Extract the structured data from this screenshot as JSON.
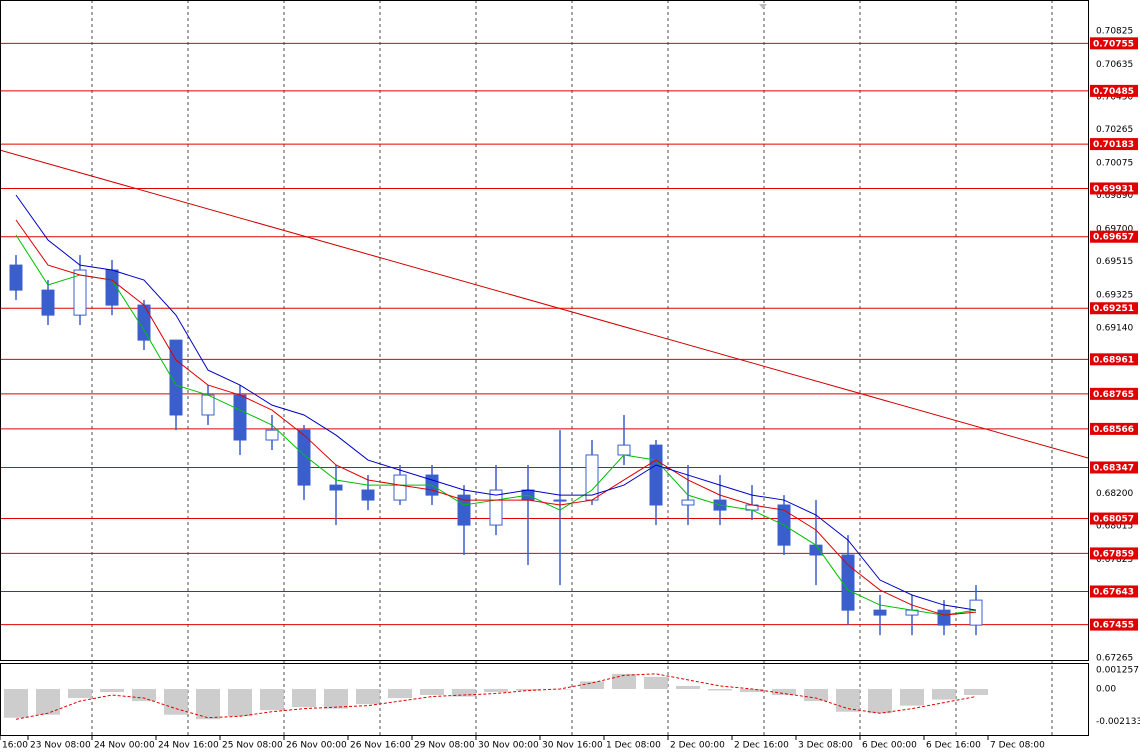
{
  "chart_data": [
    {
      "type": "candlestick",
      "candle_color": "#3a5fcd",
      "open": [
        0.69496,
        0.69354,
        0.69212,
        0.69468,
        0.69269,
        0.6907,
        0.68645,
        0.68758,
        0.68503,
        0.68559,
        0.68247,
        0.68219,
        0.68162,
        0.68304,
        0.6819,
        0.6802,
        0.68219,
        0.68162,
        0.68162,
        0.68418,
        0.68474,
        0.68134,
        0.68162,
        0.68105,
        0.68134,
        0.67906,
        0.6785,
        0.67537,
        0.67509,
        0.67537,
        0.67452
      ],
      "high": [
        0.69553,
        0.69411,
        0.69553,
        0.69525,
        0.69298,
        0.6907,
        0.68815,
        0.68815,
        0.68645,
        0.68588,
        0.68361,
        0.68304,
        0.68361,
        0.68361,
        0.68247,
        0.68361,
        0.68361,
        0.68559,
        0.68503,
        0.68645,
        0.68503,
        0.68361,
        0.68304,
        0.68247,
        0.6819,
        0.68162,
        0.67963,
        0.67623,
        0.67623,
        0.67594,
        0.67679
      ],
      "low": [
        0.69298,
        0.69156,
        0.69156,
        0.69212,
        0.69014,
        0.68559,
        0.68588,
        0.68418,
        0.68446,
        0.68162,
        0.6802,
        0.68105,
        0.68134,
        0.68134,
        0.6785,
        0.67963,
        0.67793,
        0.67679,
        0.68134,
        0.68361,
        0.6802,
        0.6802,
        0.6802,
        0.68048,
        0.6785,
        0.67679,
        0.67452,
        0.67395,
        0.67395,
        0.67395,
        0.67395
      ],
      "close": [
        0.69354,
        0.69212,
        0.69468,
        0.69269,
        0.6907,
        0.68645,
        0.68758,
        0.68503,
        0.68559,
        0.68247,
        0.68219,
        0.68162,
        0.68304,
        0.6819,
        0.6802,
        0.68219,
        0.68162,
        0.68162,
        0.68418,
        0.68474,
        0.68134,
        0.68162,
        0.68105,
        0.68134,
        0.67906,
        0.6785,
        0.67537,
        0.67509,
        0.67537,
        0.67452,
        0.67594
      ],
      "series": [
        {
          "color": "#00c000",
          "values": [
            0.69667,
            0.69383,
            0.6944,
            0.69411,
            0.69127,
            0.68815,
            0.68758,
            0.68673,
            0.68588,
            0.68418,
            0.68276,
            0.68247,
            0.68247,
            0.68247,
            0.68134,
            0.68162,
            0.6819,
            0.68105,
            0.68219,
            0.68418,
            0.68389,
            0.6819,
            0.68134,
            0.68105,
            0.6802,
            0.67906,
            0.67651,
            0.67566,
            0.67537,
            0.67509,
            0.67537
          ]
        },
        {
          "color": "#e00000",
          "values": [
            0.69752,
            0.69496,
            0.6944,
            0.69411,
            0.69269,
            0.68957,
            0.68815,
            0.68758,
            0.68673,
            0.68531,
            0.68361,
            0.68276,
            0.68247,
            0.68219,
            0.68162,
            0.68162,
            0.68162,
            0.68134,
            0.68162,
            0.68276,
            0.68389,
            0.68276,
            0.6819,
            0.68134,
            0.68105,
            0.67992,
            0.67793,
            0.67651,
            0.67566,
            0.67509,
            0.67526
          ]
        },
        {
          "color": "#0000c8",
          "values": [
            0.69894,
            0.69638,
            0.69496,
            0.69468,
            0.69411,
            0.69212,
            0.689,
            0.68815,
            0.68701,
            0.68645,
            0.68531,
            0.68389,
            0.68332,
            0.68276,
            0.68219,
            0.6819,
            0.68219,
            0.6819,
            0.6819,
            0.68247,
            0.68361,
            0.68304,
            0.68247,
            0.6819,
            0.68162,
            0.68077,
            0.67935,
            0.67708,
            0.67623,
            0.67566,
            0.67537
          ]
        }
      ],
      "levels": [
        0.70755,
        0.70485,
        0.70183,
        0.69931,
        0.69657,
        0.69251,
        0.68961,
        0.68765,
        0.68566,
        0.68347,
        0.68057,
        0.67859,
        0.67643,
        0.67455
      ],
      "level_color": "#e00000",
      "trendline": [
        0.70149,
        0.68401
      ],
      "trendline_color": "#d00000",
      "ylim": [
        0.67254,
        0.71001
      ],
      "yticks": [
        0.70825,
        0.70635,
        {
          "value": 0.7045,
          "label": "0.70450"
        },
        0.70265,
        0.70075,
        {
          "value": 0.6989,
          "label": "0.69890"
        },
        {
          "value": 0.697,
          "label": "0.69700"
        },
        0.69515,
        0.69325,
        {
          "value": 0.6914,
          "label": "0.69140"
        },
        {
          "value": 0.682,
          "label": "0.68200"
        },
        0.68015,
        0.67825,
        0.67265
      ],
      "grid": true,
      "x_labels": [
        "16:00",
        "23 Nov 08:00",
        "24 Nov 00:00",
        "24 Nov 16:00",
        "25 Nov 08:00",
        "26 Nov 00:00",
        "26 Nov 16:00",
        "29 Nov 08:00",
        "30 Nov 00:00",
        "30 Nov 16:00",
        "1 Dec 08:00",
        "2 Dec 00:00",
        "2 Dec 16:00",
        "3 Dec 08:00",
        "6 Dec 00:00",
        "6 Dec 16:00",
        "7 Dec 08:00"
      ]
    },
    {
      "type": "bar",
      "color": "#c0c0c0",
      "values": [
        -0.0019,
        -0.0017,
        -0.0006,
        -0.0002,
        -0.0008,
        -0.0017,
        -0.002,
        -0.0018,
        -0.0014,
        -0.0012,
        -0.0013,
        -0.001,
        -0.0006,
        -0.0004,
        -0.0005,
        -0.0002,
        -0.0001,
        0,
        0.0005,
        0.001,
        0.0008,
        0.0002,
        -0.0001,
        -0.0002,
        -0.0004,
        -0.0008,
        -0.0015,
        -0.0016,
        -0.0011,
        -0.0007,
        -0.0004
      ],
      "signal": {
        "color": "#e00000",
        "values": [
          -0.002,
          -0.0016,
          -0.0008,
          -0.0004,
          -0.0006,
          -0.0013,
          -0.0019,
          -0.0018,
          -0.0015,
          -0.0013,
          -0.0012,
          -0.0011,
          -0.0008,
          -0.0005,
          -0.0004,
          -0.0003,
          -0.0001,
          0,
          0.0004,
          0.0009,
          0.001,
          0.0006,
          0.0002,
          0,
          -0.0003,
          -0.0006,
          -0.0013,
          -0.0016,
          -0.0013,
          -0.0009,
          -0.0005
        ]
      },
      "ylim": [
        -0.00304,
        0.00165
      ],
      "yticks": [
        0.001257,
        {
          "value": 0,
          "label": "0.00"
        },
        -0.002133
      ]
    }
  ]
}
